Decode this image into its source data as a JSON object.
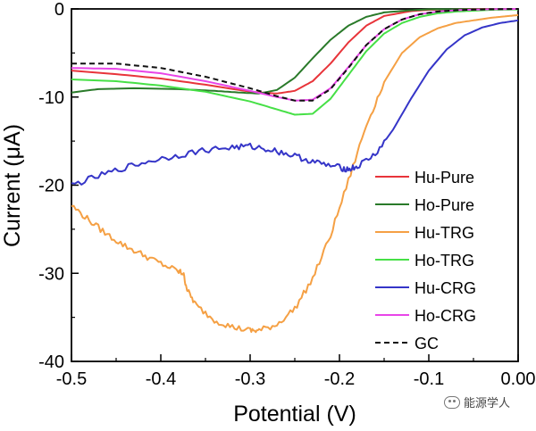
{
  "chart_data": {
    "type": "line",
    "xlabel": "Potential (V)",
    "ylabel": "Current (μA)",
    "xlim": [
      -0.5,
      0.0
    ],
    "ylim": [
      -40,
      0
    ],
    "xticks": [
      "-0.5",
      "-0.4",
      "-0.3",
      "-0.2",
      "-0.1",
      "0.00"
    ],
    "yticks": [
      "0",
      "-10",
      "-20",
      "-30",
      "-40"
    ],
    "grid": false,
    "legend_position": "right",
    "series": [
      {
        "name": "Hu-Pure",
        "color": "#e8343a",
        "dash": false,
        "x": [
          -0.5,
          -0.45,
          -0.4,
          -0.35,
          -0.3,
          -0.27,
          -0.25,
          -0.23,
          -0.21,
          -0.19,
          -0.17,
          -0.15,
          -0.12,
          -0.1,
          -0.05,
          0.0
        ],
        "y": [
          -7.0,
          -7.4,
          -7.9,
          -8.6,
          -9.4,
          -9.6,
          -9.3,
          -8.2,
          -6.2,
          -3.8,
          -1.9,
          -0.8,
          -0.25,
          -0.1,
          0.0,
          0.0
        ]
      },
      {
        "name": "Ho-Pure",
        "color": "#2a7a2a",
        "dash": false,
        "x": [
          -0.5,
          -0.47,
          -0.43,
          -0.38,
          -0.34,
          -0.31,
          -0.29,
          -0.27,
          -0.25,
          -0.23,
          -0.21,
          -0.19,
          -0.17,
          -0.15,
          -0.12,
          -0.1,
          0.0
        ],
        "y": [
          -9.5,
          -9.1,
          -9.0,
          -9.1,
          -9.3,
          -9.5,
          -9.6,
          -9.2,
          -7.8,
          -5.6,
          -3.5,
          -1.9,
          -0.9,
          -0.4,
          -0.15,
          -0.05,
          0.0
        ]
      },
      {
        "name": "Hu-TRG",
        "color": "#f5a044",
        "dash": false,
        "x": [
          -0.5,
          -0.48,
          -0.46,
          -0.44,
          -0.42,
          -0.4,
          -0.38,
          -0.375,
          -0.37,
          -0.36,
          -0.34,
          -0.32,
          -0.3,
          -0.29,
          -0.27,
          -0.25,
          -0.23,
          -0.21,
          -0.19,
          -0.17,
          -0.15,
          -0.13,
          -0.11,
          -0.09,
          -0.07,
          -0.05,
          -0.03,
          -0.01,
          0.0
        ],
        "y": [
          -22.3,
          -24.0,
          -25.6,
          -26.9,
          -27.9,
          -28.9,
          -29.8,
          -30.0,
          -32.0,
          -33.7,
          -35.3,
          -36.1,
          -36.5,
          -36.5,
          -35.8,
          -34.0,
          -30.6,
          -25.7,
          -19.5,
          -13.2,
          -8.3,
          -5.0,
          -3.2,
          -2.2,
          -1.6,
          -1.3,
          -1.0,
          -0.8,
          -0.7
        ]
      },
      {
        "name": "Ho-TRG",
        "color": "#46e046",
        "dash": false,
        "x": [
          -0.5,
          -0.45,
          -0.4,
          -0.35,
          -0.3,
          -0.27,
          -0.25,
          -0.23,
          -0.21,
          -0.19,
          -0.17,
          -0.15,
          -0.13,
          -0.11,
          -0.09,
          -0.07,
          -0.05,
          -0.03,
          0.0
        ],
        "y": [
          -8.0,
          -8.2,
          -8.7,
          -9.4,
          -10.5,
          -11.4,
          -12.0,
          -11.9,
          -10.2,
          -7.5,
          -4.8,
          -2.8,
          -1.6,
          -0.9,
          -0.5,
          -0.3,
          -0.2,
          -0.1,
          -0.05
        ]
      },
      {
        "name": "Hu-CRG",
        "color": "#3535c8",
        "dash": false,
        "x": [
          -0.5,
          -0.47,
          -0.44,
          -0.41,
          -0.38,
          -0.35,
          -0.32,
          -0.3,
          -0.28,
          -0.26,
          -0.24,
          -0.22,
          -0.2,
          -0.19,
          -0.18,
          -0.16,
          -0.14,
          -0.12,
          -0.1,
          -0.08,
          -0.06,
          -0.04,
          -0.02,
          0.0
        ],
        "y": [
          -20.0,
          -19.0,
          -18.0,
          -17.2,
          -16.6,
          -16.0,
          -15.7,
          -15.6,
          -15.9,
          -16.4,
          -17.0,
          -17.6,
          -18.0,
          -18.2,
          -17.9,
          -16.5,
          -13.7,
          -10.2,
          -7.0,
          -4.6,
          -3.0,
          -2.1,
          -1.6,
          -1.3
        ]
      },
      {
        "name": "Ho-CRG",
        "color": "#e845e8",
        "dash": false,
        "x": [
          -0.5,
          -0.45,
          -0.4,
          -0.35,
          -0.3,
          -0.27,
          -0.25,
          -0.23,
          -0.21,
          -0.19,
          -0.17,
          -0.15,
          -0.13,
          -0.11,
          -0.09,
          -0.07,
          -0.05,
          -0.03,
          0.0
        ],
        "y": [
          -6.7,
          -6.8,
          -7.3,
          -8.2,
          -9.3,
          -10.0,
          -10.4,
          -10.3,
          -9.0,
          -6.6,
          -4.1,
          -2.3,
          -1.2,
          -0.6,
          -0.3,
          -0.15,
          -0.08,
          -0.04,
          0.0
        ]
      },
      {
        "name": "GC",
        "color": "#111111",
        "dash": true,
        "x": [
          -0.5,
          -0.45,
          -0.4,
          -0.35,
          -0.3,
          -0.27,
          -0.25,
          -0.23,
          -0.21,
          -0.19,
          -0.17,
          -0.15,
          -0.13,
          -0.11,
          -0.09,
          -0.07,
          -0.05,
          -0.03,
          0.0
        ],
        "y": [
          -6.2,
          -6.2,
          -6.7,
          -7.7,
          -9.0,
          -9.9,
          -10.4,
          -10.4,
          -9.1,
          -6.7,
          -4.1,
          -2.3,
          -1.2,
          -0.6,
          -0.3,
          -0.15,
          -0.08,
          -0.04,
          0.0
        ]
      }
    ]
  },
  "watermark": "能源学人"
}
